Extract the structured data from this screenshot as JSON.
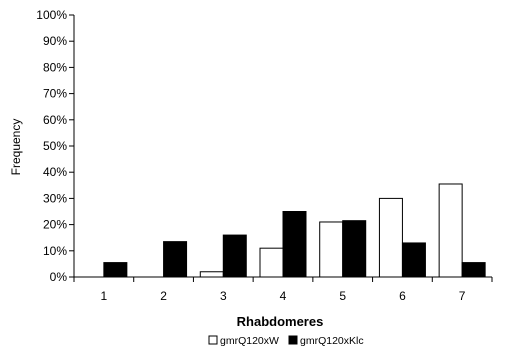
{
  "chart_data": {
    "type": "bar",
    "categories": [
      "1",
      "2",
      "3",
      "4",
      "5",
      "6",
      "7"
    ],
    "series": [
      {
        "name": "gmrQ120xW",
        "color": "#ffffff",
        "values": [
          0,
          0,
          2,
          11,
          21,
          30,
          35.5
        ]
      },
      {
        "name": "gmrQ120xKlc",
        "color": "#000000",
        "values": [
          5.5,
          13.5,
          16,
          25,
          21.5,
          13,
          5.5
        ]
      }
    ],
    "xlabel": "Rhabdomeres",
    "ylabel": "Frequency",
    "ylim": [
      0,
      100
    ],
    "yticks": [
      "0%",
      "10%",
      "20%",
      "30%",
      "40%",
      "50%",
      "60%",
      "70%",
      "80%",
      "90%",
      "100%"
    ],
    "grid": false,
    "legend_position": "bottom"
  }
}
